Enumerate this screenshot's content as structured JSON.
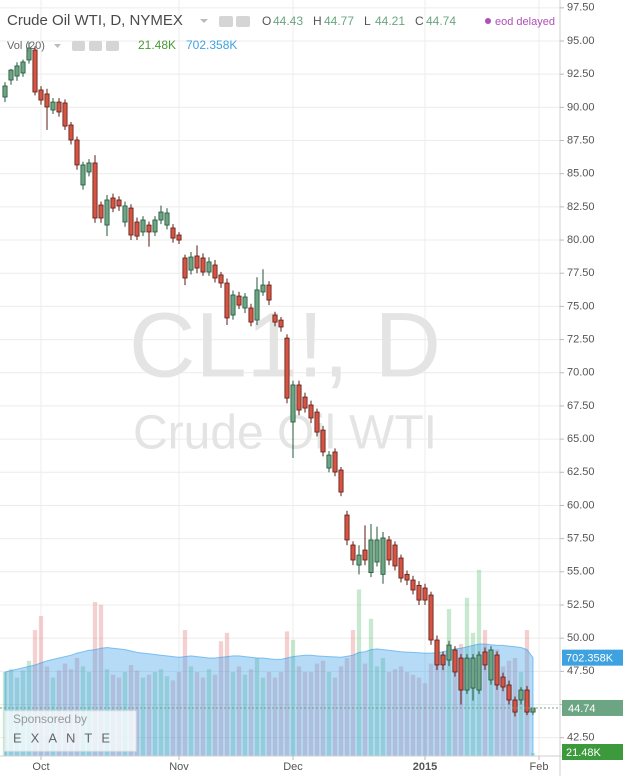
{
  "chart_data": {
    "type": "candlestick",
    "title": "Crude Oil WTI, D, NYMEX",
    "watermark_symbol": "CL1!, D",
    "watermark_name": "Crude Oil WTI",
    "status": "eod delayed",
    "ohlc_letters": [
      "O",
      "H",
      "L",
      "C"
    ],
    "up_color": "#6ba583",
    "down_color": "#d75442",
    "categories": [
      null,
      null,
      null,
      null,
      null,
      null,
      null,
      null,
      null,
      null,
      null,
      null,
      null,
      null,
      null,
      null,
      null,
      null,
      null,
      null,
      null,
      null,
      null,
      null,
      null,
      null,
      null,
      null,
      null,
      null,
      null,
      null,
      null,
      null,
      null,
      null,
      null,
      null,
      null,
      null,
      null,
      null,
      null,
      null,
      null,
      null,
      null,
      null,
      null,
      null,
      null,
      null,
      null,
      null,
      null,
      null,
      null,
      null,
      null,
      null,
      null,
      null,
      null,
      null,
      null,
      null,
      null,
      null,
      null,
      null,
      null,
      null,
      null,
      null,
      null,
      null,
      null,
      null,
      null,
      null,
      null,
      null,
      null,
      null,
      null,
      null,
      null,
      null,
      null
    ],
    "ohlc": [
      [
        90.78,
        91.9,
        90.4,
        91.61
      ],
      [
        92.06,
        92.9,
        91.7,
        92.81
      ],
      [
        92.36,
        93.4,
        92.0,
        93.12
      ],
      [
        92.59,
        93.6,
        92.3,
        93.42
      ],
      [
        93.57,
        94.9,
        93.3,
        94.47
      ],
      [
        94.32,
        94.6,
        90.9,
        91.16
      ],
      [
        91.31,
        91.6,
        90.2,
        90.55
      ],
      [
        91.01,
        91.4,
        88.3,
        90.03
      ],
      [
        89.8,
        90.7,
        89.5,
        90.4
      ],
      [
        90.4,
        90.7,
        89.3,
        89.65
      ],
      [
        90.33,
        90.6,
        88.3,
        88.59
      ],
      [
        88.67,
        88.9,
        87.2,
        87.54
      ],
      [
        87.54,
        87.8,
        85.3,
        85.66
      ],
      [
        84.15,
        85.9,
        83.8,
        85.66
      ],
      [
        85.13,
        86.1,
        84.8,
        85.81
      ],
      [
        85.81,
        86.4,
        81.3,
        81.66
      ],
      [
        82.64,
        82.9,
        81.3,
        81.66
      ],
      [
        81.13,
        83.4,
        80.3,
        83.02
      ],
      [
        83.17,
        83.5,
        82.1,
        82.41
      ],
      [
        83.02,
        83.3,
        82.2,
        82.57
      ],
      [
        81.36,
        82.9,
        81.0,
        82.57
      ],
      [
        82.41,
        82.7,
        80.0,
        80.38
      ],
      [
        81.36,
        81.7,
        80.0,
        80.3
      ],
      [
        80.61,
        81.8,
        80.3,
        81.51
      ],
      [
        81.13,
        81.4,
        79.5,
        80.61
      ],
      [
        80.61,
        81.8,
        80.3,
        81.51
      ],
      [
        81.51,
        82.6,
        81.2,
        82.11
      ],
      [
        81.13,
        82.4,
        80.8,
        82.04
      ],
      [
        80.91,
        81.2,
        79.8,
        80.15
      ],
      [
        80.38,
        80.6,
        79.7,
        80.0
      ],
      [
        78.65,
        78.9,
        76.6,
        77.14
      ],
      [
        77.74,
        79.1,
        77.4,
        78.72
      ],
      [
        78.8,
        79.6,
        77.5,
        77.89
      ],
      [
        78.65,
        79.0,
        77.3,
        77.59
      ],
      [
        77.59,
        78.7,
        77.3,
        78.35
      ],
      [
        78.12,
        78.5,
        76.8,
        77.14
      ],
      [
        77.37,
        77.6,
        76.4,
        76.76
      ],
      [
        76.76,
        77.1,
        73.6,
        74.13
      ],
      [
        74.35,
        76.2,
        74.0,
        75.86
      ],
      [
        75.78,
        76.1,
        74.8,
        75.1
      ],
      [
        74.88,
        76.0,
        74.5,
        75.71
      ],
      [
        74.88,
        75.2,
        73.5,
        73.82
      ],
      [
        73.97,
        77.2,
        73.6,
        76.24
      ],
      [
        76.09,
        77.8,
        75.8,
        76.61
      ],
      [
        76.61,
        76.9,
        75.1,
        75.48
      ],
      [
        74.35,
        74.6,
        73.5,
        73.82
      ],
      [
        73.97,
        74.2,
        73.1,
        73.45
      ],
      [
        72.61,
        72.9,
        67.7,
        68.09
      ],
      [
        66.29,
        69.4,
        63.58,
        69.08
      ],
      [
        69.08,
        69.4,
        66.8,
        67.19
      ],
      [
        68.17,
        68.5,
        67.0,
        67.34
      ],
      [
        67.57,
        67.9,
        66.2,
        66.59
      ],
      [
        67.04,
        67.3,
        65.2,
        65.53
      ],
      [
        65.68,
        66.0,
        63.7,
        64.03
      ],
      [
        62.82,
        64.1,
        62.5,
        63.8
      ],
      [
        64.03,
        64.3,
        62.2,
        62.52
      ],
      [
        62.67,
        62.9,
        60.7,
        61.01
      ],
      [
        59.28,
        59.6,
        57.0,
        57.4
      ],
      [
        57.02,
        57.3,
        55.5,
        55.89
      ],
      [
        55.51,
        57.0,
        54.8,
        56.26
      ],
      [
        56.64,
        58.5,
        55.5,
        55.89
      ],
      [
        54.94,
        58.6,
        54.6,
        57.4
      ],
      [
        55.74,
        58.4,
        55.4,
        57.4
      ],
      [
        54.81,
        58.0,
        54.1,
        57.55
      ],
      [
        57.4,
        57.7,
        55.5,
        55.89
      ],
      [
        57.02,
        57.3,
        55.1,
        55.44
      ],
      [
        56.04,
        56.3,
        54.2,
        54.53
      ],
      [
        54.81,
        55.1,
        54.0,
        54.38
      ],
      [
        54.38,
        54.7,
        53.3,
        53.63
      ],
      [
        53.98,
        54.3,
        52.5,
        52.87
      ],
      [
        53.78,
        54.1,
        52.5,
        52.87
      ],
      [
        53.25,
        53.5,
        49.5,
        49.86
      ],
      [
        49.86,
        50.2,
        47.6,
        47.98
      ],
      [
        48.73,
        49.0,
        47.6,
        47.98
      ],
      [
        48.35,
        49.8,
        47.9,
        49.48
      ],
      [
        49.11,
        49.4,
        47.1,
        47.45
      ],
      [
        48.5,
        48.8,
        45.0,
        46.09
      ],
      [
        46.09,
        48.8,
        45.8,
        48.5
      ],
      [
        46.24,
        48.8,
        45.3,
        48.5
      ],
      [
        46.09,
        49.0,
        45.8,
        48.73
      ],
      [
        48.96,
        49.3,
        47.6,
        47.98
      ],
      [
        46.85,
        49.4,
        46.5,
        49.11
      ],
      [
        48.73,
        49.0,
        46.1,
        46.47
      ],
      [
        47.07,
        47.4,
        46.0,
        46.32
      ],
      [
        46.47,
        46.8,
        45.0,
        45.34
      ],
      [
        45.34,
        45.6,
        44.1,
        44.43
      ],
      [
        45.34,
        46.3,
        45.0,
        46.09
      ],
      [
        46.09,
        46.4,
        44.2,
        44.43
      ],
      [
        44.43,
        44.77,
        44.21,
        44.74
      ]
    ],
    "volume": {
      "name": "Vol (20)",
      "up_color": "rgba(100,190,120,0.35)",
      "down_color": "rgba(225,120,120,0.35)",
      "values": [
        600000,
        620000,
        560000,
        610000,
        680000,
        900000,
        1000000,
        640000,
        560000,
        610000,
        660000,
        620000,
        700000,
        640000,
        600000,
        1100000,
        1080000,
        620000,
        580000,
        560000,
        600000,
        650000,
        610000,
        560000,
        580000,
        600000,
        620000,
        570000,
        540000,
        600000,
        900000,
        640000,
        600000,
        560000,
        620000,
        580000,
        820000,
        880000,
        600000,
        640000,
        580000,
        620000,
        700000,
        560000,
        600000,
        560000,
        600000,
        890000,
        830000,
        640000,
        600000,
        600000,
        660000,
        680000,
        600000,
        560000,
        640000,
        700000,
        900000,
        1190000,
        660000,
        980000,
        640000,
        700000,
        600000,
        620000,
        640000,
        600000,
        580000,
        560000,
        520000,
        660000,
        830000,
        640000,
        1050000,
        720000,
        800000,
        1130000,
        880000,
        1330000,
        900000,
        700000,
        760000,
        640000,
        680000,
        700000,
        600000,
        900000,
        21480
      ],
      "value_labels": {
        "88": "21.48K"
      }
    },
    "ma": {
      "color": "rgba(60,160,235,0.38)",
      "label_color": "#3ea1e0",
      "values": [
        600000,
        610000,
        620000,
        630000,
        640000,
        650000,
        665000,
        680000,
        690000,
        700000,
        710000,
        720000,
        735000,
        745000,
        755000,
        760000,
        770000,
        775000,
        770000,
        765000,
        760000,
        750000,
        740000,
        735000,
        730000,
        725000,
        720000,
        715000,
        710000,
        705000,
        710000,
        715000,
        710000,
        705000,
        700000,
        700000,
        705000,
        710000,
        715000,
        715000,
        710000,
        705000,
        700000,
        700000,
        695000,
        690000,
        690000,
        700000,
        710000,
        715000,
        720000,
        720000,
        715000,
        712000,
        710000,
        708000,
        706000,
        712000,
        720000,
        740000,
        745000,
        760000,
        765000,
        760000,
        755000,
        750000,
        745000,
        742000,
        740000,
        738000,
        735000,
        735000,
        738000,
        745000,
        755000,
        765000,
        770000,
        780000,
        790000,
        800000,
        800000,
        795000,
        790000,
        790000,
        785000,
        780000,
        775000,
        760000,
        702358
      ],
      "value_labels": {
        "88": "702.358K"
      }
    },
    "vlim": [
      0,
      5400000
    ],
    "xlim": [
      -0.833,
      92.5
    ],
    "xticks": [
      {
        "value": 6,
        "label": "Oct"
      },
      {
        "value": 29,
        "label": "Nov"
      },
      {
        "value": 48,
        "label": "Dec"
      },
      {
        "value": 70,
        "label": "2015"
      },
      {
        "value": 89,
        "label": "Feb"
      }
    ],
    "ylim": [
      41.12,
      98.09
    ],
    "yticks": [
      {
        "value": 97.5,
        "label": "97.50"
      },
      {
        "value": 95,
        "label": "95.00"
      },
      {
        "value": 92.5,
        "label": "92.50"
      },
      {
        "value": 90,
        "label": "90.00"
      },
      {
        "value": 87.5,
        "label": "87.50"
      },
      {
        "value": 85,
        "label": "85.00"
      },
      {
        "value": 82.5,
        "label": "82.50"
      },
      {
        "value": 80,
        "label": "80.00"
      },
      {
        "value": 77.5,
        "label": "77.50"
      },
      {
        "value": 75,
        "label": "75.00"
      },
      {
        "value": 72.5,
        "label": "72.50"
      },
      {
        "value": 70,
        "label": "70.00"
      },
      {
        "value": 67.5,
        "label": "67.50"
      },
      {
        "value": 65,
        "label": "65.00"
      },
      {
        "value": 62.5,
        "label": "62.50"
      },
      {
        "value": 60,
        "label": "60.00"
      },
      {
        "value": 57.5,
        "label": "57.50"
      },
      {
        "value": 55,
        "label": "55.00"
      },
      {
        "value": 52.5,
        "label": "52.50"
      },
      {
        "value": 50,
        "label": "50.00"
      },
      {
        "value": 47.5,
        "label": "47.50"
      },
      {
        "value": 45,
        "label": "45.00"
      },
      {
        "value": 42.5,
        "label": "42.50"
      }
    ],
    "grid": true,
    "sponsor": {
      "label": "Sponsored by",
      "name": "EXANTE"
    }
  }
}
